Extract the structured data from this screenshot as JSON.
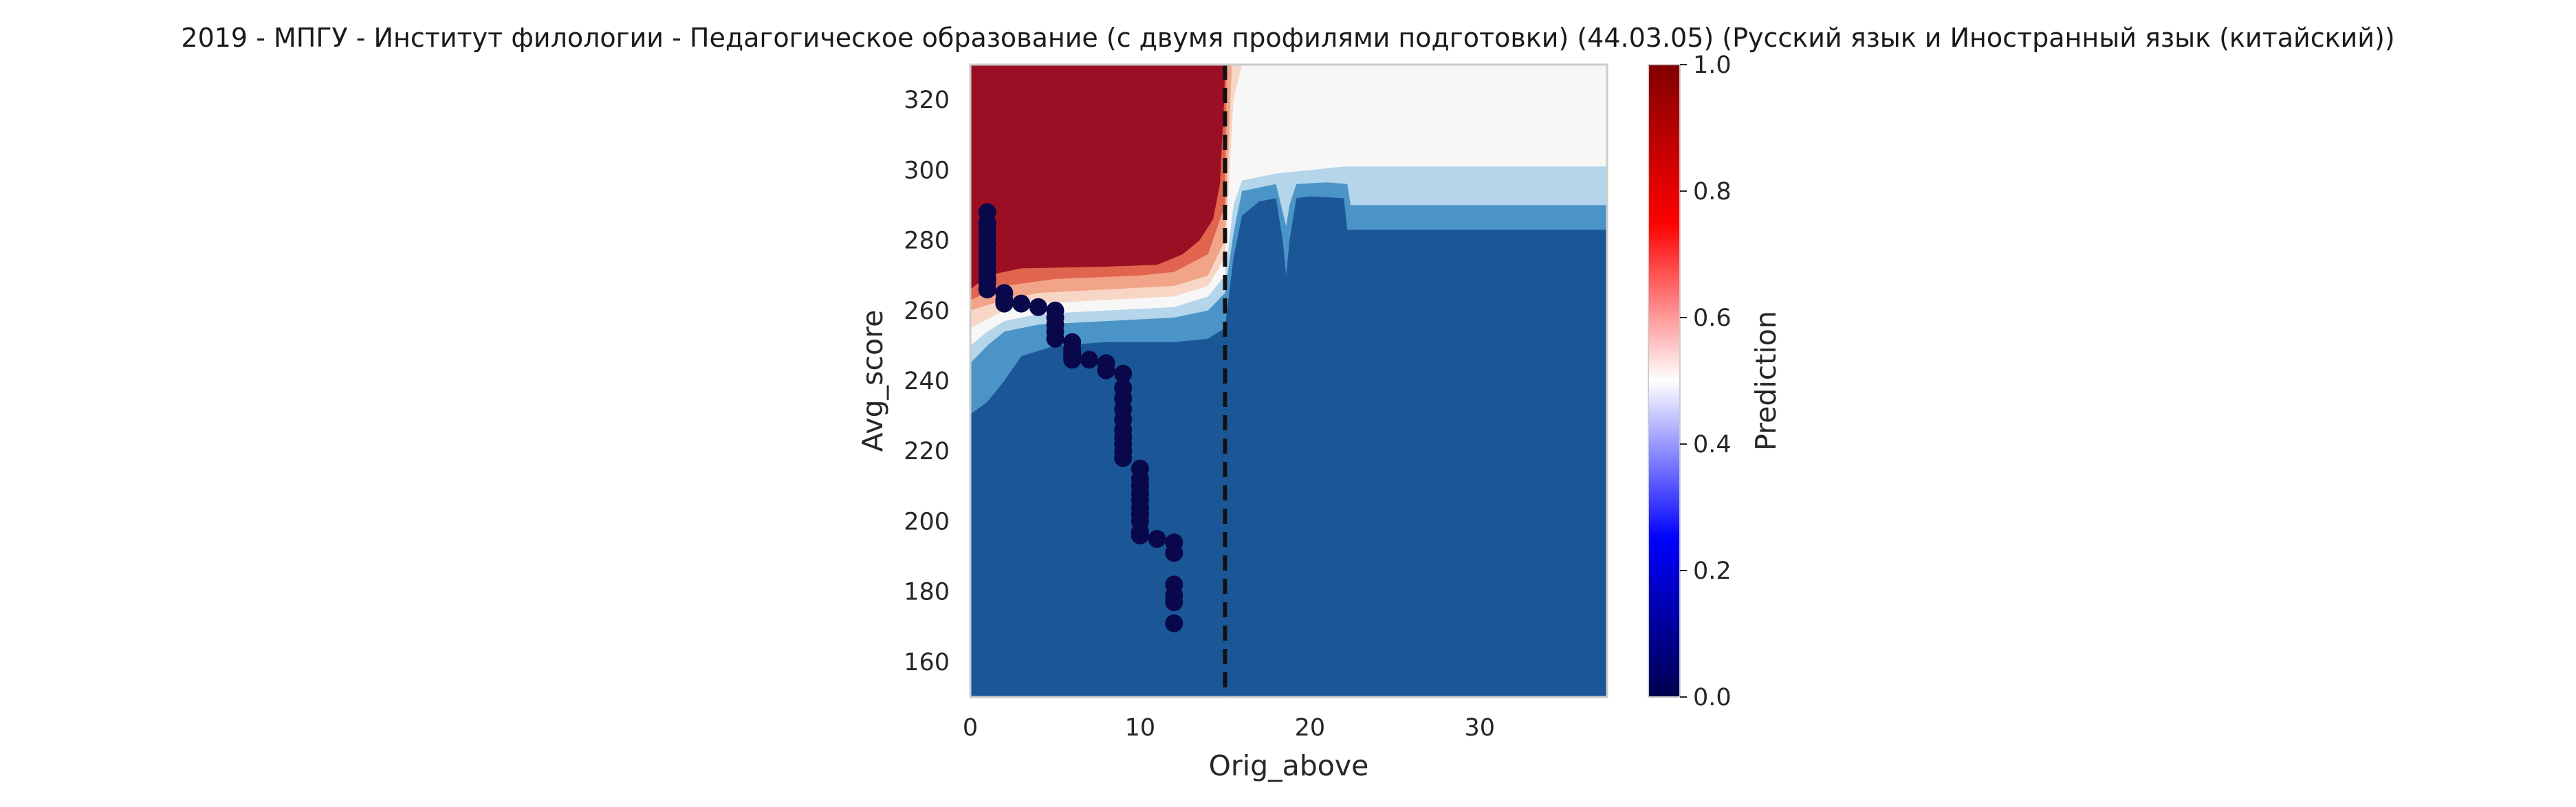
{
  "chart_data": {
    "type": "heatmap",
    "title": "2019 - МПГУ - Институт филологии - Педагогическое образование (с двумя профилями подготовки) (44.03.05) (Русский язык и Иностранный язык (китайский))",
    "xlabel": "Orig_above",
    "ylabel": "Avg_score",
    "xlim": [
      0,
      37.5
    ],
    "ylim": [
      150,
      330
    ],
    "x_ticks": [
      0,
      10,
      20,
      30
    ],
    "y_ticks": [
      160,
      180,
      200,
      220,
      240,
      260,
      280,
      300,
      320
    ],
    "grid": false,
    "threshold_line": {
      "x": 15,
      "style": "dashed",
      "color": "#111111"
    },
    "colorbar": {
      "label": "Prediction",
      "colormap": "seismic",
      "range": [
        0,
        1
      ],
      "ticks": [
        "0.0",
        "0.2",
        "0.4",
        "0.6",
        "0.8",
        "1.0"
      ]
    },
    "contour_colors": {
      "level_0_05": "#1b5797",
      "level_05_15": "#4b94c7",
      "level_15_25": "#b5d6ea",
      "level_25_35": "#f7f7f7",
      "level_35_45": "#f8d6c6",
      "level_45_55": "#f1a487",
      "level_55_65": "#e1644e",
      "level_65_1": "#9b0f24"
    },
    "points": {
      "x": [
        1,
        1,
        1,
        1,
        1,
        1,
        1,
        1,
        1,
        1,
        1,
        1,
        2,
        2,
        2,
        3,
        4,
        5,
        5,
        5,
        5,
        5,
        6,
        6,
        6,
        6,
        6,
        6,
        7,
        8,
        8,
        9,
        9,
        9,
        9,
        9,
        9,
        9,
        9,
        9,
        9,
        10,
        10,
        10,
        10,
        10,
        10,
        10,
        10,
        10,
        10,
        11,
        12,
        12,
        12,
        12,
        12,
        12
      ],
      "y": [
        288,
        285,
        283,
        281,
        279,
        277,
        275,
        273,
        271,
        269,
        268,
        266,
        265,
        263,
        262,
        262,
        261,
        260,
        258,
        256,
        254,
        252,
        251,
        249,
        248,
        247,
        247,
        246,
        246,
        245,
        243,
        242,
        238,
        235,
        232,
        229,
        226,
        224,
        222,
        220,
        218,
        215,
        212,
        210,
        208,
        206,
        204,
        202,
        200,
        197,
        196,
        195,
        194,
        191,
        182,
        179,
        177,
        171
      ],
      "value": 0,
      "color": "#08084a"
    }
  }
}
